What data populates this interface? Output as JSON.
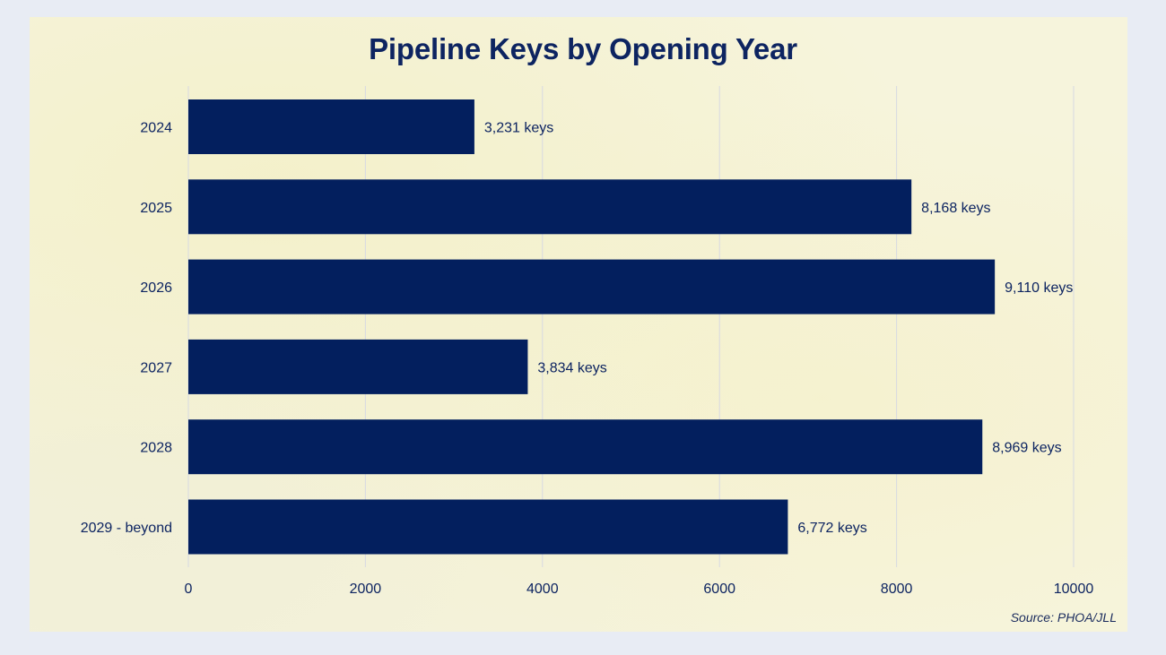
{
  "chart_data": {
    "type": "bar",
    "orientation": "horizontal",
    "title": "Pipeline Keys by Opening Year",
    "categories": [
      "2024",
      "2025",
      "2026",
      "2027",
      "2028",
      "2029 - beyond"
    ],
    "values": [
      3231,
      8168,
      9110,
      3834,
      8969,
      6772
    ],
    "data_labels": [
      "3,231 keys",
      "8,168 keys",
      "9,110 keys",
      "3,834 keys",
      "8,969 keys",
      "6,772 keys"
    ],
    "x_ticks": [
      "0",
      "2000",
      "4000",
      "6000",
      "8000",
      "10000"
    ],
    "xlim": [
      0,
      10000
    ],
    "xlabel": "",
    "ylabel": "",
    "grid": "vertical",
    "legend": "none",
    "source": "Source: PHOA/JLL",
    "colors": {
      "bar": "#031f5e",
      "text": "#0d2461",
      "grid": "#d7d9e2",
      "background": "#e8ecf4",
      "panel": "#f6f4dc"
    }
  }
}
